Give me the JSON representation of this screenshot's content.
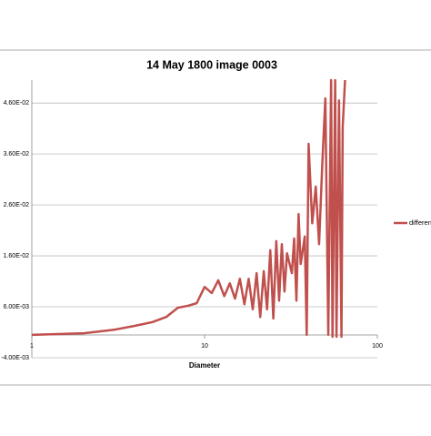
{
  "chart_data": {
    "type": "line",
    "title": "14 May 1800 image 0003",
    "x_label": "Diameter",
    "x": [
      1,
      2,
      3,
      4,
      5,
      6,
      7,
      8,
      9,
      10,
      11,
      12,
      13,
      14,
      15,
      16,
      17,
      18,
      19,
      20,
      21,
      22,
      23,
      24,
      25,
      26,
      27,
      28,
      29,
      30,
      32,
      33,
      34,
      35,
      36,
      38,
      39,
      40,
      42,
      44,
      46,
      48,
      50,
      52,
      54,
      55,
      57,
      58,
      60,
      62,
      63,
      65
    ],
    "series": [
      {
        "name": "difference",
        "color": "#c0504d",
        "values": [
          0.0005,
          0.0008,
          0.0015,
          0.0023,
          0.003,
          0.004,
          0.0058,
          0.0062,
          0.0067,
          0.0099,
          0.0087,
          0.0112,
          0.0081,
          0.0106,
          0.0076,
          0.0115,
          0.0065,
          0.0115,
          0.0055,
          0.0126,
          0.004,
          0.013,
          0.0055,
          0.0171,
          0.0037,
          0.0189,
          0.0072,
          0.0183,
          0.009,
          0.0165,
          0.0126,
          0.0194,
          0.0072,
          0.0242,
          0.0144,
          0.0198,
          0.0005,
          0.038,
          0.0224,
          0.0296,
          0.0183,
          0.034,
          0.0469,
          0.0005,
          0.0505,
          0.0001,
          0.0505,
          0.0001,
          0.0465,
          0.0001,
          0.0412,
          0.0505
        ]
      }
    ],
    "xscale": "log",
    "xlim": [
      1,
      100
    ],
    "xticks": [
      1,
      10,
      100
    ],
    "ylim": [
      -0.004,
      0.0505
    ],
    "yticks": [
      {
        "value": -0.004,
        "label": "-4.00E-03"
      },
      {
        "value": 0.006,
        "label": "6.00E-03"
      },
      {
        "value": 0.016,
        "label": "1.60E-02"
      },
      {
        "value": 0.026,
        "label": "2.60E-02"
      },
      {
        "value": 0.036,
        "label": "3.60E-02"
      },
      {
        "value": 0.046,
        "label": "4.60E-02"
      }
    ],
    "grid": true,
    "legend": "right"
  }
}
